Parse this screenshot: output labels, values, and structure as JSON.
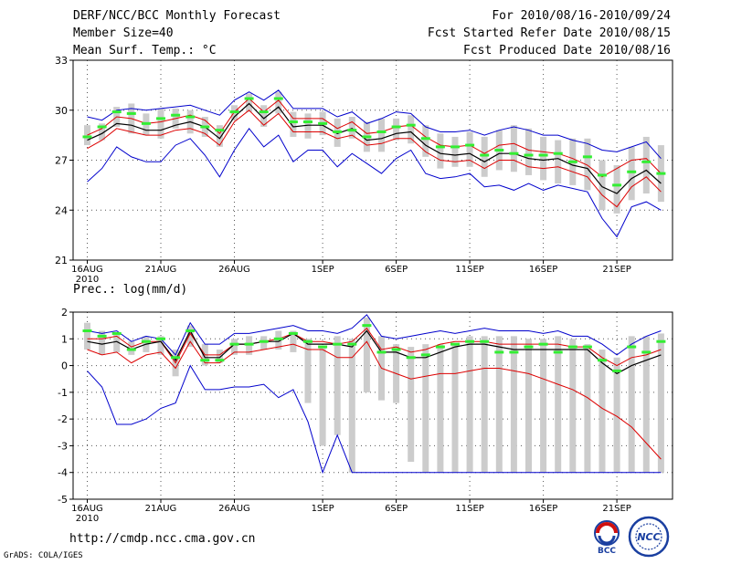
{
  "header": {
    "title": "DERF/NCC/BCC Monthly Forecast",
    "member_size": "Member Size=40",
    "variable": "Mean Surf. Temp.: °C",
    "period": "For 2010/08/16-2010/09/24",
    "fcst_started": "Fcst Started Refer Date 2010/08/15",
    "fcst_produced": "Fcst Produced Date 2010/08/16"
  },
  "footer": {
    "url": "http://cmdp.ncc.cma.gov.cn",
    "credit": "GrADS: COLA/IGES",
    "logo_bcc_text": "BCC",
    "logo_ncc_text": "NCC"
  },
  "colors": {
    "envelope": "#0000cc",
    "spread": "#dd0000",
    "mean": "#000000",
    "box": "#cccccc",
    "median": "#33ee33"
  },
  "chart_data": [
    {
      "type": "line",
      "title": "Mean Surf. Temp.: °C",
      "x_ticks": [
        "16AUG",
        "21AUG",
        "26AUG",
        "1SEP",
        "6SEP",
        "11SEP",
        "16SEP",
        "21SEP"
      ],
      "x_tick_days": [
        0,
        5,
        10,
        16,
        21,
        26,
        31,
        36
      ],
      "x_year": "2010",
      "ylim": [
        21,
        33
      ],
      "y_ticks": [
        "21",
        "24",
        "27",
        "30",
        "33"
      ],
      "y_tick_values": [
        21,
        24,
        27,
        30,
        33
      ],
      "grid": true,
      "day": [
        0,
        1,
        2,
        3,
        4,
        5,
        6,
        7,
        8,
        9,
        10,
        11,
        12,
        13,
        14,
        15,
        16,
        17,
        18,
        19,
        20,
        21,
        22,
        23,
        24,
        25,
        26,
        27,
        28,
        29,
        30,
        31,
        32,
        33,
        34,
        35,
        36,
        37,
        38,
        39
      ],
      "series": [
        {
          "name": "max",
          "values": [
            29.6,
            29.4,
            30.0,
            30.1,
            30.0,
            30.1,
            30.2,
            30.3,
            30.0,
            29.7,
            30.6,
            31.1,
            30.6,
            31.2,
            30.1,
            30.1,
            30.1,
            29.6,
            29.9,
            29.2,
            29.5,
            29.9,
            29.8,
            29.0,
            28.7,
            28.7,
            28.8,
            28.5,
            28.8,
            29.0,
            28.8,
            28.5,
            28.5,
            28.2,
            28.0,
            27.6,
            27.5,
            27.8,
            28.1,
            27.1
          ]
        },
        {
          "name": "upper",
          "values": [
            28.5,
            28.9,
            29.6,
            29.5,
            29.2,
            29.3,
            29.5,
            29.7,
            29.4,
            28.6,
            29.9,
            30.7,
            29.9,
            30.6,
            29.5,
            29.5,
            29.5,
            28.9,
            29.3,
            28.6,
            28.7,
            29.0,
            29.1,
            28.4,
            27.9,
            27.8,
            27.9,
            27.4,
            27.9,
            28.0,
            27.6,
            27.5,
            27.4,
            27.1,
            26.7,
            26.0,
            26.5,
            27.0,
            27.1,
            26.2
          ]
        },
        {
          "name": "mean",
          "values": [
            28.2,
            28.6,
            29.2,
            29.1,
            28.8,
            28.8,
            29.1,
            29.3,
            29.0,
            28.3,
            29.6,
            30.4,
            29.5,
            30.2,
            29.0,
            29.1,
            29.1,
            28.6,
            28.9,
            28.2,
            28.3,
            28.6,
            28.7,
            27.9,
            27.4,
            27.3,
            27.4,
            26.9,
            27.4,
            27.4,
            27.1,
            27.0,
            27.1,
            26.7,
            26.5,
            25.4,
            25.0,
            25.9,
            26.4,
            25.6
          ]
        },
        {
          "name": "lower",
          "values": [
            27.7,
            28.2,
            28.9,
            28.7,
            28.5,
            28.5,
            28.8,
            28.9,
            28.6,
            27.9,
            29.3,
            30.0,
            29.1,
            29.8,
            28.7,
            28.7,
            28.7,
            28.3,
            28.5,
            27.9,
            28.0,
            28.3,
            28.3,
            27.5,
            27.0,
            26.9,
            27.0,
            26.5,
            27.0,
            27.0,
            26.6,
            26.5,
            26.6,
            26.3,
            26.0,
            24.9,
            24.2,
            25.4,
            26.0,
            25.1
          ]
        },
        {
          "name": "min",
          "values": [
            25.7,
            26.5,
            27.8,
            27.2,
            26.9,
            26.9,
            27.9,
            28.3,
            27.3,
            26.0,
            27.6,
            28.9,
            27.8,
            28.5,
            26.9,
            27.6,
            27.6,
            26.6,
            27.4,
            26.8,
            26.2,
            27.1,
            27.6,
            26.2,
            25.9,
            26.0,
            26.2,
            25.4,
            25.5,
            25.2,
            25.6,
            25.2,
            25.5,
            25.3,
            25.1,
            23.5,
            22.4,
            24.2,
            24.5,
            24.0
          ]
        }
      ],
      "box_low": [
        27.9,
        28.2,
        29.0,
        28.6,
        28.5,
        28.3,
        28.9,
        28.6,
        28.4,
        27.8,
        29.4,
        29.9,
        29.0,
        29.8,
        28.4,
        28.3,
        28.5,
        27.8,
        28.3,
        27.5,
        27.5,
        28.2,
        28.0,
        27.2,
        26.5,
        26.6,
        26.6,
        26.0,
        26.4,
        26.3,
        26.1,
        25.8,
        25.6,
        25.5,
        25.2,
        24.0,
        23.8,
        24.6,
        25.0,
        24.5
      ],
      "box_high": [
        29.1,
        29.2,
        30.2,
        30.4,
        29.8,
        30.1,
        30.1,
        30.0,
        29.6,
        29.1,
        30.3,
        31.0,
        30.3,
        31.1,
        29.9,
        29.8,
        29.9,
        29.5,
        29.6,
        29.3,
        29.5,
        29.5,
        29.7,
        29.1,
        28.6,
        28.4,
        28.7,
        28.4,
        28.8,
        29.1,
        28.9,
        28.4,
        28.2,
        28.3,
        28.3,
        27.0,
        26.7,
        27.8,
        28.4,
        27.9
      ],
      "median": [
        28.4,
        29.0,
        29.9,
        29.8,
        29.2,
        29.5,
        29.7,
        29.6,
        29.0,
        28.8,
        29.9,
        30.7,
        29.9,
        30.7,
        29.3,
        29.3,
        29.2,
        28.7,
        28.8,
        28.4,
        28.7,
        29.0,
        29.1,
        28.3,
        27.8,
        27.8,
        27.9,
        27.3,
        27.6,
        27.4,
        27.3,
        27.3,
        27.4,
        26.9,
        27.2,
        26.1,
        25.5,
        26.3,
        26.9,
        26.2
      ]
    },
    {
      "type": "line",
      "title": "Prec.: log(mm/d)",
      "x_ticks": [
        "16AUG",
        "21AUG",
        "26AUG",
        "1SEP",
        "6SEP",
        "11SEP",
        "16SEP",
        "21SEP"
      ],
      "x_tick_days": [
        0,
        5,
        10,
        16,
        21,
        26,
        31,
        36
      ],
      "x_year": "2010",
      "ylim": [
        -5,
        2
      ],
      "y_ticks": [
        "-5",
        "-4",
        "-3",
        "-2",
        "-1",
        "0",
        "1",
        "2"
      ],
      "y_tick_values": [
        -5,
        -4,
        -3,
        -2,
        -1,
        0,
        1,
        2
      ],
      "grid": true,
      "day": [
        0,
        1,
        2,
        3,
        4,
        5,
        6,
        7,
        8,
        9,
        10,
        11,
        12,
        13,
        14,
        15,
        16,
        17,
        18,
        19,
        20,
        21,
        22,
        23,
        24,
        25,
        26,
        27,
        28,
        29,
        30,
        31,
        32,
        33,
        34,
        35,
        36,
        37,
        38,
        39
      ],
      "series": [
        {
          "name": "max",
          "values": [
            1.3,
            1.2,
            1.3,
            0.9,
            1.1,
            1.0,
            0.4,
            1.6,
            0.8,
            0.8,
            1.2,
            1.2,
            1.3,
            1.4,
            1.5,
            1.3,
            1.3,
            1.2,
            1.4,
            1.9,
            1.1,
            1.0,
            1.1,
            1.2,
            1.3,
            1.2,
            1.3,
            1.4,
            1.3,
            1.3,
            1.3,
            1.2,
            1.3,
            1.1,
            1.1,
            0.8,
            0.4,
            0.8,
            1.1,
            1.3
          ]
        },
        {
          "name": "upper",
          "values": [
            1.0,
            1.0,
            1.1,
            0.7,
            0.9,
            0.9,
            0.1,
            1.2,
            0.4,
            0.4,
            0.8,
            0.8,
            0.9,
            1.0,
            1.2,
            0.9,
            0.9,
            0.8,
            0.9,
            1.4,
            0.6,
            0.7,
            0.5,
            0.6,
            0.8,
            0.9,
            0.9,
            0.9,
            0.8,
            0.8,
            0.8,
            0.8,
            0.8,
            0.7,
            0.7,
            0.3,
            0.0,
            0.3,
            0.4,
            0.6
          ]
        },
        {
          "name": "mean",
          "values": [
            0.9,
            0.8,
            0.9,
            0.6,
            0.8,
            0.9,
            0.2,
            1.3,
            0.3,
            0.3,
            0.8,
            0.8,
            0.9,
            0.9,
            1.2,
            0.8,
            0.8,
            0.8,
            0.7,
            1.3,
            0.5,
            0.5,
            0.3,
            0.3,
            0.5,
            0.7,
            0.8,
            0.8,
            0.7,
            0.6,
            0.6,
            0.6,
            0.6,
            0.6,
            0.6,
            0.1,
            -0.3,
            0.0,
            0.2,
            0.4
          ]
        },
        {
          "name": "lower",
          "values": [
            0.6,
            0.4,
            0.5,
            0.1,
            0.4,
            0.5,
            -0.1,
            0.9,
            0.1,
            0.1,
            0.5,
            0.5,
            0.6,
            0.7,
            0.8,
            0.6,
            0.6,
            0.3,
            0.3,
            0.9,
            -0.1,
            -0.3,
            -0.5,
            -0.4,
            -0.3,
            -0.3,
            -0.2,
            -0.1,
            -0.1,
            -0.2,
            -0.3,
            -0.5,
            -0.7,
            -0.9,
            -1.2,
            -1.6,
            -1.9,
            -2.3,
            -2.9,
            -3.5
          ]
        },
        {
          "name": "min",
          "values": [
            -0.2,
            -0.8,
            -2.2,
            -2.2,
            -2.0,
            -1.6,
            -1.4,
            0.0,
            -0.9,
            -0.9,
            -0.8,
            -0.8,
            -0.7,
            -1.2,
            -0.9,
            -2.1,
            -4.0,
            -2.6,
            -4.0,
            -4.0,
            -4.0,
            -4.0,
            -4.0,
            -4.0,
            -4.0,
            -4.0,
            -4.0,
            -4.0,
            -4.0,
            -4.0,
            -4.0,
            -4.0,
            -4.0,
            -4.0,
            -4.0,
            -4.0,
            -4.0,
            -4.0,
            -4.0,
            -4.0
          ]
        }
      ],
      "box_low": [
        0.6,
        0.4,
        0.5,
        0.4,
        0.5,
        0.4,
        -0.4,
        0.7,
        0.0,
        0.1,
        0.4,
        0.4,
        0.6,
        0.6,
        0.5,
        -1.4,
        -3.0,
        -2.6,
        -4.0,
        -1.0,
        -1.3,
        -1.4,
        -3.6,
        -4.0,
        -4.0,
        -4.0,
        -4.0,
        -4.0,
        -4.0,
        -4.0,
        -4.0,
        -4.0,
        -4.0,
        -4.0,
        -4.0,
        -4.0,
        -4.0,
        -4.0,
        -4.0,
        -4.0
      ],
      "box_high": [
        1.6,
        1.3,
        1.2,
        0.9,
        1.1,
        1.1,
        0.6,
        1.5,
        0.8,
        0.6,
        1.0,
        1.1,
        1.1,
        1.3,
        1.3,
        1.0,
        0.7,
        1.1,
        1.0,
        1.8,
        1.1,
        0.8,
        0.7,
        0.8,
        0.8,
        0.8,
        1.1,
        1.1,
        1.1,
        1.1,
        1.0,
        1.0,
        1.1,
        1.0,
        0.8,
        0.6,
        0.3,
        1.1,
        1.1,
        1.2
      ],
      "median": [
        1.3,
        1.1,
        1.2,
        0.6,
        0.9,
        1.0,
        0.3,
        1.3,
        0.2,
        0.2,
        0.8,
        0.8,
        0.9,
        1.0,
        1.2,
        0.9,
        0.7,
        0.8,
        0.8,
        1.5,
        0.5,
        0.6,
        0.3,
        0.4,
        0.7,
        0.8,
        0.9,
        0.9,
        0.5,
        0.5,
        0.7,
        0.8,
        0.5,
        0.7,
        0.7,
        0.2,
        -0.2,
        0.7,
        0.5,
        0.9
      ]
    }
  ]
}
